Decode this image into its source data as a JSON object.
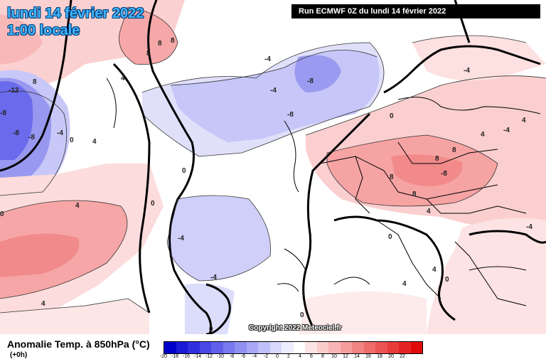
{
  "header": {
    "date_line": "lundi 14 février 2022",
    "time_line": "1:00 locale",
    "run_info": "Run ECMWF 0Z du lundi 14 février 2022"
  },
  "footer": {
    "parameter": "Anomalie Temp. à 850hPa (°C)",
    "lead_time": "(+0h)",
    "copyright": "Copyright 2022 Meteociel.fr"
  },
  "legend": {
    "ticks": [
      "-20",
      "-18",
      "-16",
      "-14",
      "-12",
      "-10",
      "-8",
      "-6",
      "-4",
      "-2",
      "0",
      "2",
      "4",
      "6",
      "8",
      "10",
      "12",
      "14",
      "16",
      "18",
      "20",
      "22"
    ],
    "colors": [
      "#0000cc",
      "#1a1ad8",
      "#3030e0",
      "#4848e6",
      "#6060ec",
      "#7878f0",
      "#9090f2",
      "#a8a8f5",
      "#c0c0f8",
      "#d8d8fb",
      "#ececfd",
      "#ffffff",
      "#fde4e4",
      "#fbcccc",
      "#f8b4b4",
      "#f59c9c",
      "#f28484",
      "#ef6c6c",
      "#ec5454",
      "#e83c3c",
      "#e42424",
      "#e00c0c"
    ]
  },
  "map": {
    "contour_labels": [
      "-12",
      "-8",
      "-8",
      "-8",
      "-8",
      "-8",
      "-8",
      "-4",
      "-4",
      "-4",
      "-4",
      "-4",
      "-4",
      "-4",
      "-4",
      "0",
      "0",
      "0",
      "0",
      "0",
      "0",
      "0",
      "0",
      "0",
      "4",
      "4",
      "4",
      "4",
      "4",
      "4",
      "4",
      "4",
      "4",
      "8",
      "8",
      "8",
      "8",
      "8",
      "8",
      "8",
      "8"
    ]
  }
}
